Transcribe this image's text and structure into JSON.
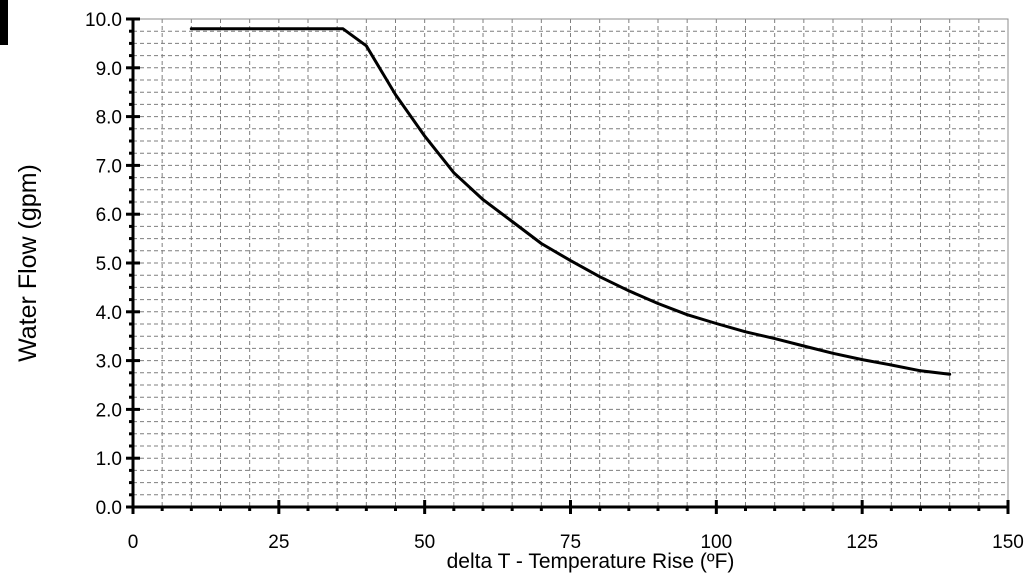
{
  "chart_data": {
    "type": "line",
    "title": "",
    "xlabel": "delta T - Temperature Rise (ºF)",
    "ylabel": "Water Flow (gpm)",
    "xlim": [
      0,
      150
    ],
    "ylim": [
      0,
      10
    ],
    "x_ticks": [
      "0",
      "25",
      "50",
      "75",
      "100",
      "125",
      "150"
    ],
    "y_ticks": [
      "0.0",
      "1.0",
      "2.0",
      "3.0",
      "4.0",
      "5.0",
      "6.0",
      "7.0",
      "8.0",
      "9.0",
      "10.0"
    ],
    "grid": true,
    "series": [
      {
        "x": [
          10,
          15,
          20,
          25,
          30,
          36,
          40,
          45,
          50,
          55,
          60,
          65,
          70,
          75,
          80,
          85,
          90,
          95,
          100,
          105,
          110,
          115,
          120,
          125,
          130,
          135,
          140
        ],
        "values": [
          9.8,
          9.8,
          9.8,
          9.8,
          9.8,
          9.8,
          9.45,
          8.45,
          7.6,
          6.85,
          6.3,
          5.85,
          5.4,
          5.05,
          4.72,
          4.43,
          4.17,
          3.94,
          3.76,
          3.59,
          3.45,
          3.3,
          3.15,
          3.02,
          2.91,
          2.79,
          2.72
        ]
      }
    ]
  }
}
